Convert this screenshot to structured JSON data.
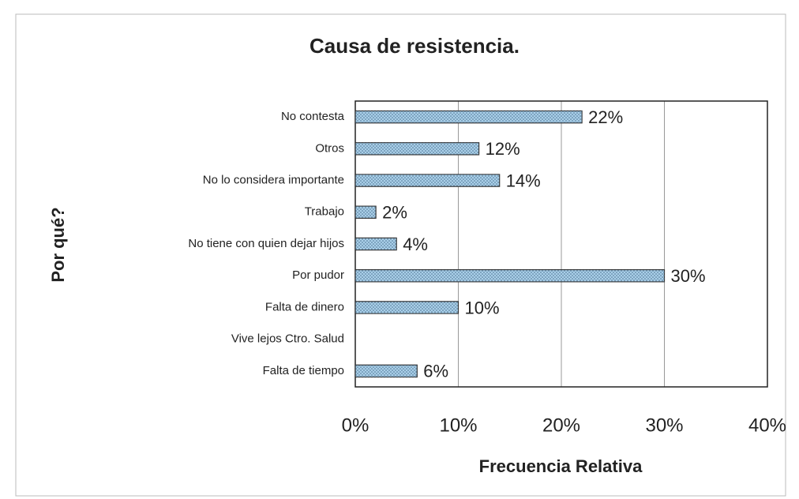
{
  "chart_data": {
    "type": "bar",
    "orientation": "horizontal",
    "title": "Causa de resistencia.",
    "x_label": "Frecuencia Relativa",
    "y_label": "Por qué?",
    "categories": [
      "No contesta",
      "Otros",
      "No lo considera importante",
      "Trabajo",
      "No tiene con quien dejar hijos",
      "Por pudor",
      "Falta de dinero",
      "Vive lejos Ctro. Salud",
      "Falta de tiempo"
    ],
    "values": [
      22,
      12,
      14,
      2,
      4,
      30,
      10,
      null,
      6
    ],
    "value_labels": [
      "22%",
      "12%",
      "14%",
      "2%",
      "4%",
      "30%",
      "10%",
      null,
      "6%"
    ],
    "color": "#a9cfe8",
    "xlim": [
      0,
      40
    ],
    "xticks": [
      {
        "value": 0,
        "label": "0%"
      },
      {
        "value": 10,
        "label": "10%"
      },
      {
        "value": 20,
        "label": "20%"
      },
      {
        "value": 30,
        "label": "30%"
      },
      {
        "value": 40,
        "label": "40%"
      }
    ],
    "grid": true
  }
}
